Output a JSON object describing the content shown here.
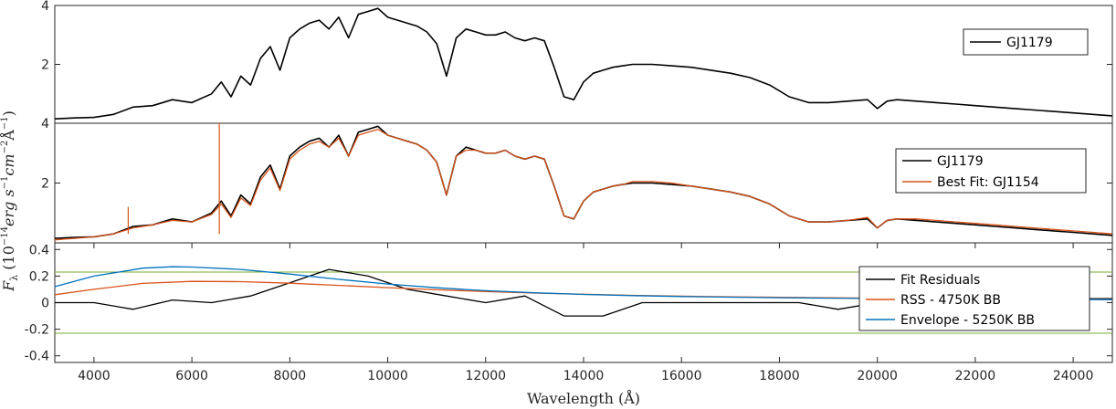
{
  "chart_data": [
    {
      "type": "line",
      "panel": "top",
      "ylim": [
        0,
        4
      ],
      "xlim": [
        3200,
        24800
      ],
      "yticks": [
        "4",
        "2"
      ],
      "ytick_values": [
        4,
        2
      ],
      "legend": {
        "placement": "top-right",
        "entries": [
          "GJ1179"
        ]
      },
      "series": [
        {
          "name": "GJ1179",
          "color": "#000000",
          "x": [
            3200,
            3600,
            4000,
            4400,
            4800,
            5200,
            5600,
            6000,
            6400,
            6600,
            6800,
            7000,
            7200,
            7400,
            7600,
            7800,
            8000,
            8200,
            8400,
            8600,
            8800,
            9000,
            9200,
            9400,
            9600,
            9800,
            10000,
            10200,
            10400,
            10600,
            10800,
            11000,
            11200,
            11400,
            11600,
            11800,
            12000,
            12200,
            12400,
            12600,
            12800,
            13000,
            13200,
            13400,
            13600,
            13800,
            14000,
            14200,
            14400,
            14600,
            14800,
            15000,
            15400,
            15800,
            16200,
            16600,
            17000,
            17400,
            17800,
            18200,
            18600,
            19000,
            19400,
            19800,
            20000,
            20200,
            20400,
            20800,
            21200,
            21600,
            22000,
            22400,
            22800,
            23200,
            23600,
            24000,
            24400,
            24800
          ],
          "y": [
            0.15,
            0.18,
            0.2,
            0.3,
            0.55,
            0.6,
            0.8,
            0.7,
            1.0,
            1.4,
            0.9,
            1.6,
            1.3,
            2.2,
            2.6,
            1.8,
            2.9,
            3.2,
            3.4,
            3.5,
            3.2,
            3.6,
            2.9,
            3.7,
            3.8,
            3.9,
            3.6,
            3.5,
            3.4,
            3.3,
            3.1,
            2.7,
            1.6,
            2.9,
            3.2,
            3.1,
            3.0,
            3.0,
            3.1,
            2.9,
            2.8,
            2.9,
            2.8,
            1.9,
            0.9,
            0.8,
            1.4,
            1.7,
            1.8,
            1.9,
            1.95,
            2.0,
            2.0,
            1.95,
            1.9,
            1.8,
            1.7,
            1.55,
            1.3,
            0.9,
            0.7,
            0.7,
            0.75,
            0.8,
            0.5,
            0.75,
            0.8,
            0.75,
            0.7,
            0.65,
            0.6,
            0.55,
            0.5,
            0.45,
            0.4,
            0.35,
            0.3,
            0.25
          ]
        }
      ]
    },
    {
      "type": "line",
      "panel": "middle",
      "ylim": [
        0,
        4
      ],
      "xlim": [
        3200,
        24800
      ],
      "yticks": [
        "4",
        "2"
      ],
      "ytick_values": [
        4,
        2
      ],
      "legend": {
        "placement": "top-right",
        "entries": [
          "GJ1179",
          "Best Fit: GJ1154"
        ]
      },
      "series": [
        {
          "name": "GJ1179",
          "color": "#000000",
          "x": [
            3200,
            3600,
            4000,
            4400,
            4800,
            5200,
            5600,
            6000,
            6400,
            6600,
            6800,
            7000,
            7200,
            7400,
            7600,
            7800,
            8000,
            8200,
            8400,
            8600,
            8800,
            9000,
            9200,
            9400,
            9600,
            9800,
            10000,
            10200,
            10400,
            10600,
            10800,
            11000,
            11200,
            11400,
            11600,
            11800,
            12000,
            12200,
            12400,
            12600,
            12800,
            13000,
            13200,
            13400,
            13600,
            13800,
            14000,
            14200,
            14400,
            14600,
            14800,
            15000,
            15400,
            15800,
            16200,
            16600,
            17000,
            17400,
            17800,
            18200,
            18600,
            19000,
            19400,
            19800,
            20000,
            20200,
            20400,
            20800,
            21200,
            21600,
            22000,
            22400,
            22800,
            23200,
            23600,
            24000,
            24400,
            24800
          ],
          "y": [
            0.15,
            0.18,
            0.2,
            0.3,
            0.55,
            0.6,
            0.8,
            0.7,
            1.0,
            1.4,
            0.9,
            1.6,
            1.3,
            2.2,
            2.6,
            1.8,
            2.9,
            3.2,
            3.4,
            3.5,
            3.2,
            3.6,
            2.9,
            3.7,
            3.8,
            3.9,
            3.6,
            3.5,
            3.4,
            3.3,
            3.1,
            2.7,
            1.6,
            2.9,
            3.2,
            3.1,
            3.0,
            3.0,
            3.1,
            2.9,
            2.8,
            2.9,
            2.8,
            1.9,
            0.9,
            0.8,
            1.4,
            1.7,
            1.8,
            1.9,
            1.95,
            2.0,
            2.0,
            1.95,
            1.9,
            1.8,
            1.7,
            1.55,
            1.3,
            0.9,
            0.7,
            0.7,
            0.75,
            0.8,
            0.5,
            0.75,
            0.8,
            0.75,
            0.7,
            0.65,
            0.6,
            0.55,
            0.5,
            0.45,
            0.4,
            0.35,
            0.3,
            0.25
          ]
        },
        {
          "name": "Best Fit: GJ1154",
          "color": "#d95319",
          "x": [
            3200,
            3600,
            4000,
            4400,
            4800,
            5200,
            5600,
            6000,
            6400,
            6600,
            6800,
            7000,
            7200,
            7400,
            7600,
            7800,
            8000,
            8200,
            8400,
            8600,
            8800,
            9000,
            9200,
            9400,
            9600,
            9800,
            10000,
            10200,
            10400,
            10600,
            10800,
            11000,
            11200,
            11400,
            11600,
            11800,
            12000,
            12200,
            12400,
            12600,
            12800,
            13000,
            13200,
            13400,
            13600,
            13800,
            14000,
            14200,
            14400,
            14600,
            14800,
            15000,
            15400,
            15800,
            16200,
            16600,
            17000,
            17400,
            17800,
            18200,
            18600,
            19000,
            19400,
            19800,
            20000,
            20200,
            20400,
            20800,
            21200,
            21600,
            22000,
            22400,
            22800,
            23200,
            23600,
            24000,
            24400,
            24800
          ],
          "y": [
            0.1,
            0.15,
            0.2,
            0.3,
            0.5,
            0.6,
            0.75,
            0.7,
            0.95,
            1.3,
            0.85,
            1.5,
            1.25,
            2.1,
            2.5,
            1.75,
            2.8,
            3.1,
            3.3,
            3.4,
            3.2,
            3.5,
            2.9,
            3.6,
            3.7,
            3.8,
            3.6,
            3.5,
            3.4,
            3.3,
            3.1,
            2.7,
            1.6,
            2.9,
            3.1,
            3.1,
            3.0,
            3.0,
            3.1,
            2.9,
            2.8,
            2.9,
            2.8,
            1.9,
            0.9,
            0.8,
            1.4,
            1.7,
            1.8,
            1.9,
            1.95,
            2.05,
            2.05,
            2.0,
            1.9,
            1.8,
            1.7,
            1.55,
            1.3,
            0.9,
            0.7,
            0.7,
            0.75,
            0.85,
            0.5,
            0.75,
            0.8,
            0.8,
            0.75,
            0.7,
            0.65,
            0.6,
            0.55,
            0.5,
            0.45,
            0.4,
            0.35,
            0.3
          ]
        }
      ],
      "spikes": [
        {
          "x": 4700,
          "y": 1.2
        },
        {
          "x": 6560,
          "y": 4.0
        }
      ]
    },
    {
      "type": "line",
      "panel": "bottom",
      "xlabel": "Wavelength (Å)",
      "ylabel": "F_λ (10^{-14} erg s^{-1} cm^{-2} Å^{-1})",
      "ylim": [
        -0.45,
        0.45
      ],
      "xlim": [
        3200,
        24800
      ],
      "xticks": [
        "4000",
        "6000",
        "8000",
        "10000",
        "12000",
        "14000",
        "16000",
        "18000",
        "20000",
        "22000",
        "24000"
      ],
      "xtick_values": [
        4000,
        6000,
        8000,
        10000,
        12000,
        14000,
        16000,
        18000,
        20000,
        22000,
        24000
      ],
      "yticks": [
        "0.4",
        "0.2",
        "0",
        "-0.2",
        "-0.4"
      ],
      "ytick_values": [
        0.4,
        0.2,
        0,
        -0.2,
        -0.4
      ],
      "hlines": [
        {
          "y": 0.23,
          "color": "#77ac30"
        },
        {
          "y": -0.23,
          "color": "#77ac30"
        }
      ],
      "legend": {
        "placement": "right",
        "entries": [
          "Fit Residuals",
          "RSS - 4750K BB",
          "Envelope - 5250K BB"
        ]
      },
      "series": [
        {
          "name": "Fit Residuals",
          "color": "#000000",
          "x": [
            3200,
            4000,
            4800,
            5600,
            6400,
            7200,
            8000,
            8800,
            9600,
            10400,
            11200,
            12000,
            12800,
            13600,
            14400,
            15200,
            16000,
            16800,
            17600,
            18400,
            19200,
            20000,
            20800,
            21600,
            22400,
            23200,
            24000,
            24800
          ],
          "y": [
            0.0,
            0.0,
            -0.05,
            0.02,
            0.0,
            0.05,
            0.15,
            0.25,
            0.2,
            0.1,
            0.05,
            0.0,
            0.05,
            -0.1,
            -0.1,
            0.0,
            0.0,
            0.0,
            0.0,
            0.0,
            -0.05,
            0.0,
            0.05,
            0.05,
            0.05,
            0.04,
            0.03,
            0.03
          ]
        },
        {
          "name": "RSS - 4750K BB",
          "color": "#d95319",
          "x": [
            3200,
            4000,
            5000,
            6000,
            7000,
            8000,
            9000,
            10000,
            11000,
            12000,
            13000,
            14000,
            15000,
            16000,
            17000,
            18000,
            19000,
            20000,
            21000,
            22000,
            23000,
            24000,
            24800
          ],
          "y": [
            0.06,
            0.1,
            0.145,
            0.16,
            0.158,
            0.146,
            0.13,
            0.113,
            0.097,
            0.083,
            0.072,
            0.063,
            0.055,
            0.049,
            0.044,
            0.04,
            0.037,
            0.034,
            0.031,
            0.029,
            0.027,
            0.025,
            0.024
          ]
        },
        {
          "name": "Envelope - 5250K BB",
          "color": "#0072bd",
          "x": [
            3200,
            4000,
            5000,
            5600,
            6000,
            7000,
            8000,
            9000,
            10000,
            11000,
            12000,
            13000,
            14000,
            15000,
            16000,
            17000,
            18000,
            19000,
            20000,
            21000,
            22000,
            23000,
            24000,
            24800
          ],
          "y": [
            0.12,
            0.2,
            0.26,
            0.27,
            0.268,
            0.25,
            0.215,
            0.175,
            0.14,
            0.112,
            0.09,
            0.074,
            0.062,
            0.053,
            0.046,
            0.041,
            0.037,
            0.034,
            0.031,
            0.029,
            0.027,
            0.025,
            0.024,
            0.023
          ]
        }
      ]
    }
  ]
}
